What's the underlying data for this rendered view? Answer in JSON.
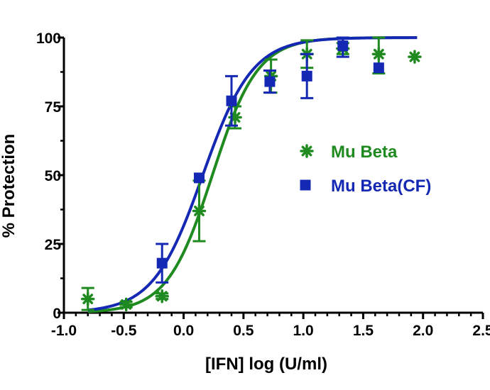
{
  "chart_data": {
    "type": "scatter",
    "xlabel": "[IFN] log (U/ml)",
    "ylabel": "% Protection",
    "xlim": [
      -1.0,
      2.5
    ],
    "ylim": [
      0,
      100
    ],
    "x_ticks": [
      "-1.0",
      "-0.5",
      "0.0",
      "0.5",
      "1.0",
      "1.5",
      "2.0",
      "2.5"
    ],
    "y_ticks": [
      "0",
      "25",
      "50",
      "75",
      "100"
    ],
    "legend_position": "right-center",
    "grid": false,
    "series": [
      {
        "name": "Mu Beta",
        "color": "#1f8a1f",
        "marker": "asterisk",
        "points": [
          {
            "x": -0.8,
            "y": 5,
            "err": 4
          },
          {
            "x": -0.48,
            "y": 3,
            "err": 1
          },
          {
            "x": -0.18,
            "y": 6,
            "err": 1
          },
          {
            "x": 0.13,
            "y": 37,
            "err": 11
          },
          {
            "x": 0.43,
            "y": 71,
            "err": 4
          },
          {
            "x": 0.73,
            "y": 86,
            "err": 6
          },
          {
            "x": 1.03,
            "y": 94,
            "err": 5
          },
          {
            "x": 1.33,
            "y": 96,
            "err": 2
          },
          {
            "x": 1.63,
            "y": 94,
            "err": 7
          },
          {
            "x": 1.93,
            "y": 93,
            "err": 0
          }
        ],
        "fit": {
          "ec50_log": 0.24,
          "hill": 2.3,
          "bottom": 0,
          "top": 100
        }
      },
      {
        "name": "Mu Beta(CF)",
        "color": "#1428b4",
        "marker": "square",
        "points": [
          {
            "x": -0.18,
            "y": 18,
            "err": 7
          },
          {
            "x": 0.13,
            "y": 49,
            "err": 0
          },
          {
            "x": 0.4,
            "y": 77,
            "err": 9
          },
          {
            "x": 0.72,
            "y": 84,
            "err": 4
          },
          {
            "x": 1.03,
            "y": 86,
            "err": 8
          },
          {
            "x": 1.33,
            "y": 97,
            "err": 4
          },
          {
            "x": 1.63,
            "y": 89,
            "err": 0
          }
        ],
        "fit": {
          "ec50_log": 0.16,
          "hill": 2.1,
          "bottom": 0,
          "top": 100
        }
      }
    ]
  }
}
